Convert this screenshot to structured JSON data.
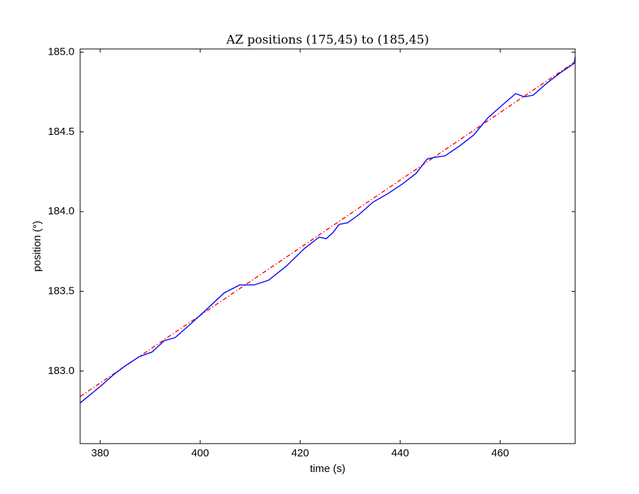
{
  "chart_data": {
    "type": "line",
    "title": "AZ positions (175,45) to (185,45)",
    "x_label": "time (s)",
    "y_label": "position (°)",
    "xlim": [
      376,
      475
    ],
    "ylim": [
      182.545,
      185.02
    ],
    "xticks": [
      380,
      400,
      420,
      440,
      460
    ],
    "yticks": [
      {
        "value": 183.0,
        "label": "183.0"
      },
      {
        "value": 183.5,
        "label": "183.5"
      },
      {
        "value": 184.0,
        "label": "184.0"
      },
      {
        "value": 184.5,
        "label": "184.5"
      },
      {
        "value": 185.0,
        "label": "185.0"
      }
    ],
    "series": [
      {
        "color": "#0000ff",
        "style": "solid",
        "x": [
          376,
          379.9,
          382.8,
          384.9,
          387.8,
          390.4,
          392.8,
          395.0,
          397.9,
          400.7,
          404.8,
          407.9,
          410.8,
          413.7,
          417.3,
          420.9,
          423.8,
          425.2,
          426.6,
          427.8,
          429.5,
          431.7,
          434.6,
          437.4,
          440.3,
          443.2,
          445.4,
          446.8,
          449.0,
          451.8,
          454.7,
          457.6,
          460.5,
          463.1,
          464.8,
          466.6,
          469.1,
          472.0,
          474.8,
          475
        ],
        "values": [
          182.8,
          182.9,
          182.98,
          183.03,
          183.09,
          183.12,
          183.19,
          183.21,
          183.29,
          183.37,
          183.49,
          183.54,
          183.54,
          183.57,
          183.66,
          183.77,
          183.84,
          183.83,
          183.87,
          183.92,
          183.93,
          183.98,
          184.06,
          184.11,
          184.17,
          184.24,
          184.33,
          184.34,
          184.35,
          184.41,
          184.48,
          184.59,
          184.67,
          184.74,
          184.72,
          184.73,
          184.8,
          184.87,
          184.93,
          184.97
        ]
      },
      {
        "color": "#ff0000",
        "style": "dashdot",
        "x": [
          376,
          475
        ],
        "values": [
          182.84,
          184.94
        ]
      }
    ]
  }
}
